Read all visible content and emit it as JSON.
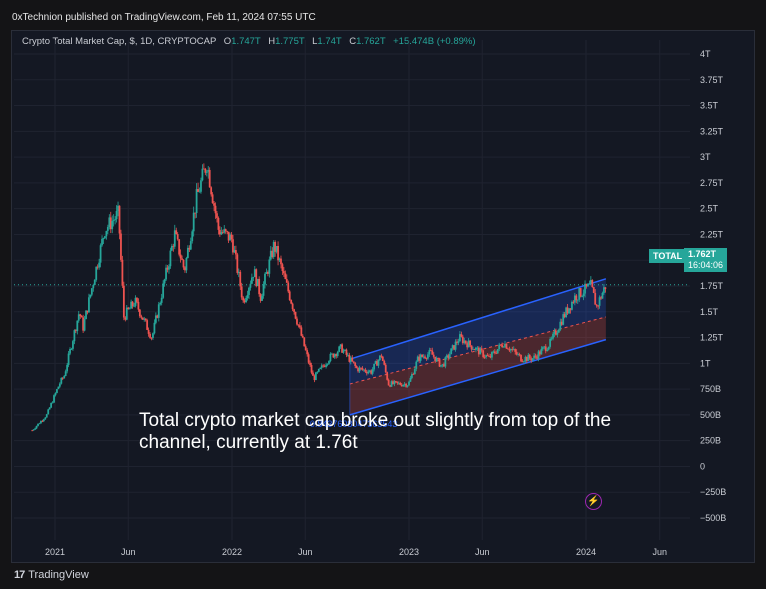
{
  "publisher_line": "0xTechnion published on TradingView.com, Feb 11, 2024 07:55 UTC",
  "symbol": {
    "title": "Crypto Total Market Cap, $, 1D, CRYPTOCAP",
    "open_key": "O",
    "open": "1.747T",
    "high_key": "H",
    "high": "1.775T",
    "low_key": "L",
    "low": "1.74T",
    "close_key": "C",
    "close": "1.762T",
    "change": "+15.474B (+0.89%)"
  },
  "price_tag": {
    "label": "TOTAL",
    "price": "1.762T",
    "countdown": "16:04:06"
  },
  "annotation": "Total crypto market cap broke out slightly from top of the channel, currently at 1.76t",
  "fib_label": "0.8437608047363543",
  "footer_brand": "TradingView",
  "footer_logo": "17",
  "colors": {
    "up": "#26a69a",
    "down": "#ef5350",
    "channel_line": "#2962ff",
    "channel_upper_fill": "#2962ff",
    "channel_lower_fill": "#ef5350",
    "background": "#141823",
    "text": "#c9ccd3"
  },
  "chart_data": {
    "type": "candlestick",
    "title": "Crypto Total Market Cap, $, 1D, CRYPTOCAP",
    "y_axis": {
      "position": "right",
      "ticks": [
        "4T",
        "3.75T",
        "3.5T",
        "3.25T",
        "3T",
        "2.75T",
        "2.5T",
        "2.25T",
        "2T",
        "1.75T",
        "1.5T",
        "1.25T",
        "1T",
        "750B",
        "500B",
        "250B",
        "0",
        "−250B",
        "−500B"
      ],
      "values": [
        4000,
        3750,
        3500,
        3250,
        3000,
        2750,
        2500,
        2250,
        2000,
        1750,
        1500,
        1250,
        1000,
        750,
        500,
        250,
        0,
        -250,
        -500
      ],
      "unit": "B",
      "range": [
        -580,
        4050
      ]
    },
    "x_axis": {
      "ticks": [
        "2021",
        "Jun",
        "2022",
        "Jun",
        "2023",
        "Jun",
        "2024",
        "Jun"
      ],
      "dates": [
        "2021-01-01",
        "2021-06-01",
        "2022-01-01",
        "2022-06-01",
        "2023-01-01",
        "2023-06-01",
        "2024-01-01",
        "2024-06-01"
      ]
    },
    "price_path": [
      [
        "2020-11-15",
        350
      ],
      [
        "2020-12-15",
        500
      ],
      [
        "2021-01-10",
        800
      ],
      [
        "2021-01-20",
        880
      ],
      [
        "2021-02-20",
        1500
      ],
      [
        "2021-02-28",
        1350
      ],
      [
        "2021-04-14",
        2300
      ],
      [
        "2021-05-12",
        2450
      ],
      [
        "2021-05-23",
        1450
      ],
      [
        "2021-06-15",
        1600
      ],
      [
        "2021-07-20",
        1250
      ],
      [
        "2021-09-05",
        2250
      ],
      [
        "2021-09-25",
        1900
      ],
      [
        "2021-10-20",
        2600
      ],
      [
        "2021-11-10",
        2950
      ],
      [
        "2021-12-04",
        2300
      ],
      [
        "2022-01-01",
        2200
      ],
      [
        "2022-01-24",
        1600
      ],
      [
        "2022-02-15",
        1900
      ],
      [
        "2022-03-01",
        1650
      ],
      [
        "2022-03-29",
        2150
      ],
      [
        "2022-05-10",
        1500
      ],
      [
        "2022-05-25",
        1250
      ],
      [
        "2022-06-18",
        850
      ],
      [
        "2022-07-20",
        1050
      ],
      [
        "2022-08-14",
        1150
      ],
      [
        "2022-09-15",
        950
      ],
      [
        "2022-10-15",
        920
      ],
      [
        "2022-11-05",
        1080
      ],
      [
        "2022-11-20",
        800
      ],
      [
        "2022-12-31",
        800
      ],
      [
        "2023-01-20",
        1050
      ],
      [
        "2023-02-15",
        1100
      ],
      [
        "2023-03-10",
        970
      ],
      [
        "2023-04-15",
        1250
      ],
      [
        "2023-05-15",
        1150
      ],
      [
        "2023-06-15",
        1050
      ],
      [
        "2023-07-15",
        1200
      ],
      [
        "2023-08-20",
        1050
      ],
      [
        "2023-09-15",
        1050
      ],
      [
        "2023-10-20",
        1200
      ],
      [
        "2023-11-15",
        1450
      ],
      [
        "2023-12-10",
        1650
      ],
      [
        "2024-01-11",
        1750
      ],
      [
        "2024-01-23",
        1550
      ],
      [
        "2024-02-11",
        1762
      ]
    ],
    "channel": {
      "upper": [
        [
          "2022-09-01",
          1040
        ],
        [
          "2024-02-11",
          1820
        ]
      ],
      "middle": [
        [
          "2022-09-01",
          800
        ],
        [
          "2024-02-11",
          1450
        ]
      ],
      "lower": [
        [
          "2022-09-01",
          500
        ],
        [
          "2024-02-11",
          1230
        ]
      ]
    },
    "last_close": 1762
  }
}
